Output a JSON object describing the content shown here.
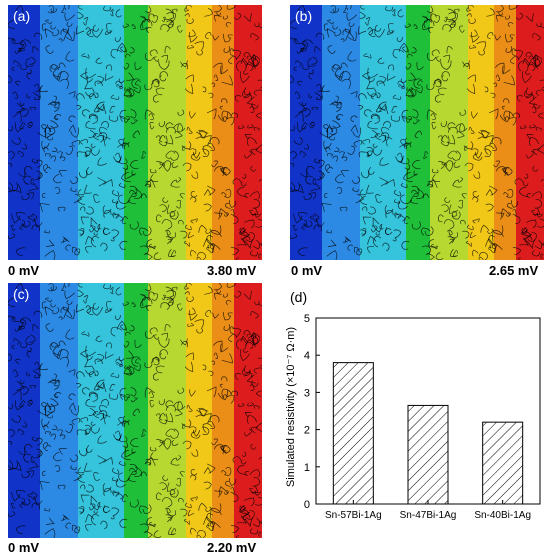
{
  "maps": [
    {
      "label": "(a)",
      "min_label": "0 mV",
      "max_label": "3.80 mV"
    },
    {
      "label": "(b)",
      "min_label": "0 mV",
      "max_label": "2.65 mV"
    },
    {
      "label": "(c)",
      "min_label": "0 mV",
      "max_label": "2.20 mV"
    }
  ],
  "colors": {
    "band_1": "#1233c8",
    "band_2": "#2d8ae4",
    "band_3": "#36c3dc",
    "band_4": "#1fbf3a",
    "band_5": "#b6d831",
    "band_6": "#f2c818",
    "band_7": "#ea8e17",
    "band_8": "#dd1d1d",
    "bar_hatch": "#000000"
  },
  "chart_data": {
    "type": "bar",
    "panel_label": "(d)",
    "categories": [
      "Sn-57Bi-1Ag",
      "Sn-47Bi-1Ag",
      "Sn-40Bi-1Ag"
    ],
    "values": [
      3.8,
      2.65,
      2.2
    ],
    "ylabel": "Simulated resistivity (×10⁻⁷ Ω·m)",
    "xlabel": "",
    "ylim": [
      0,
      5
    ],
    "yticks": [
      0,
      1,
      2,
      3,
      4,
      5
    ],
    "grid": false,
    "bar_fill": "hatched"
  }
}
